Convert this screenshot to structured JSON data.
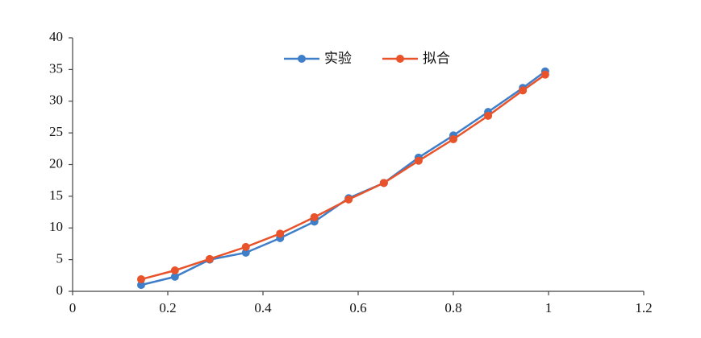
{
  "chart_data": {
    "type": "line",
    "x": [
      0.144,
      0.215,
      0.288,
      0.364,
      0.436,
      0.508,
      0.58,
      0.654,
      0.727,
      0.8,
      0.873,
      0.946,
      0.993
    ],
    "series": [
      {
        "name": "实验",
        "color": "#3f7ec8",
        "values": [
          1.0,
          2.3,
          5.0,
          6.1,
          8.4,
          11.0,
          14.7,
          17.1,
          21.1,
          24.6,
          28.3,
          32.1,
          34.7
        ]
      },
      {
        "name": "拟合",
        "color": "#e8532b",
        "values": [
          1.9,
          3.3,
          5.1,
          7.0,
          9.1,
          11.7,
          14.5,
          17.1,
          20.6,
          24.0,
          27.7,
          31.7,
          34.2
        ]
      }
    ],
    "xlim": [
      0,
      1.2
    ],
    "xticks": [
      0,
      0.2,
      0.4,
      0.6,
      0.8,
      1,
      1.2
    ],
    "ylim": [
      0,
      40
    ],
    "yticks": [
      0,
      5,
      10,
      15,
      20,
      25,
      30,
      35,
      40
    ],
    "grid": false,
    "legend": "top"
  }
}
